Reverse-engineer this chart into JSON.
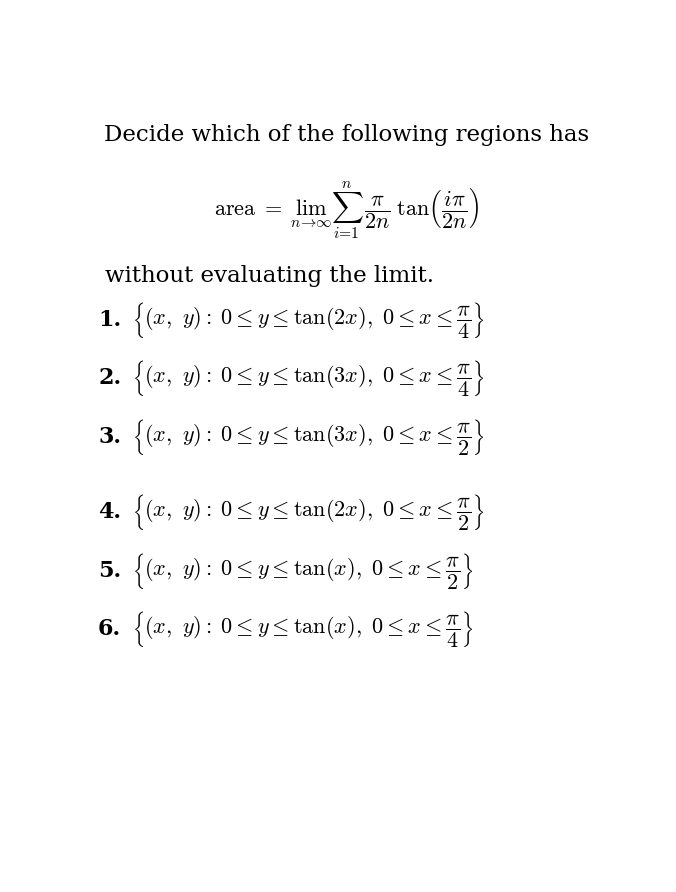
{
  "title": "Decide which of the following regions has",
  "subtitle": "without evaluating the limit.",
  "items": [
    {
      "num": "1.",
      "tex": "$\\left\\{(x,\\ y) :\\; 0 \\leq y \\leq \\tan(2x),\\ 0 \\leq x \\leq \\dfrac{\\pi}{4}\\right\\}$"
    },
    {
      "num": "2.",
      "tex": "$\\left\\{(x,\\ y) :\\; 0 \\leq y \\leq \\tan(3x),\\ 0 \\leq x \\leq \\dfrac{\\pi}{4}\\right\\}$"
    },
    {
      "num": "3.",
      "tex": "$\\left\\{(x,\\ y) :\\; 0 \\leq y \\leq \\tan(3x),\\ 0 \\leq x \\leq \\dfrac{\\pi}{2}\\right\\}$"
    },
    {
      "num": "4.",
      "tex": "$\\left\\{(x,\\ y) :\\; 0 \\leq y \\leq \\tan(2x),\\ 0 \\leq x \\leq \\dfrac{\\pi}{2}\\right\\}$"
    },
    {
      "num": "5.",
      "tex": "$\\left\\{(x,\\ y) :\\; 0 \\leq y \\leq \\tan(x),\\ 0 \\leq x \\leq \\dfrac{\\pi}{2}\\right\\}$"
    },
    {
      "num": "6.",
      "tex": "$\\left\\{(x,\\ y) :\\; 0 \\leq y \\leq \\tan(x),\\ 0 \\leq x \\leq \\dfrac{\\pi}{4}\\right\\}$"
    }
  ],
  "bg_color": "#ffffff",
  "text_color": "#000000",
  "title_fontsize": 16.5,
  "formula_fontsize": 16,
  "subtitle_fontsize": 16.5,
  "item_fontsize": 16,
  "num_fontsize": 16
}
